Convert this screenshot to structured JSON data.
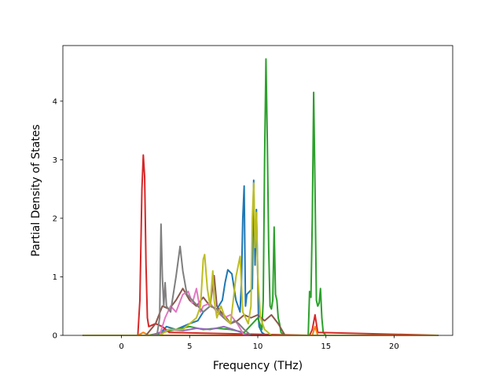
{
  "chart_data": {
    "type": "line",
    "title": "",
    "xlabel": "Frequency (THz)",
    "ylabel": "Partial Density of States",
    "xlim": [
      -4.3,
      24.3
    ],
    "ylim": [
      0,
      4.95
    ],
    "xticks": [
      0,
      5,
      10,
      15,
      20
    ],
    "yticks": [
      0,
      1,
      2,
      3,
      4
    ],
    "grid": false,
    "legend": "none",
    "series": [
      {
        "color": "#1f77b4",
        "x": [
          -2.8,
          2.6,
          2.9,
          3.3,
          4.0,
          5.0,
          5.6,
          6.0,
          6.5,
          7.0,
          7.4,
          7.6,
          7.8,
          8.1,
          8.4,
          8.7,
          8.8,
          8.9,
          9.0,
          9.05,
          9.1,
          9.2,
          9.4,
          9.6,
          9.7,
          9.8,
          9.9,
          10.0,
          10.05,
          10.1,
          10.3,
          10.6,
          11.0,
          23.2
        ],
        "y": [
          0,
          0,
          0.05,
          0.15,
          0.1,
          0.2,
          0.25,
          0.4,
          0.5,
          0.45,
          0.6,
          0.9,
          1.12,
          1.05,
          0.6,
          0.4,
          0.9,
          2.0,
          2.55,
          1.5,
          0.5,
          0.7,
          0.75,
          0.8,
          2.65,
          1.2,
          2.15,
          1.0,
          0.3,
          0.15,
          0.05,
          0,
          0,
          0
        ]
      },
      {
        "color": "#2ca02c",
        "x": [
          -2.8,
          2.0,
          3.0,
          4.0,
          5.0,
          6.0,
          7.0,
          8.0,
          9.0,
          10.0,
          10.3,
          10.4,
          10.5,
          10.6,
          10.7,
          10.8,
          10.9,
          11.0,
          11.1,
          11.2,
          11.3,
          11.4,
          11.5,
          11.6,
          11.7,
          12.0,
          13.7,
          13.8,
          13.9,
          14.0,
          14.1,
          14.2,
          14.3,
          14.4,
          14.5,
          14.6,
          14.7,
          14.8,
          15.0,
          23.2
        ],
        "y": [
          0,
          0,
          0.05,
          0.1,
          0.15,
          0.1,
          0.12,
          0.1,
          0.05,
          0.3,
          0.1,
          0.6,
          3.0,
          4.72,
          3.3,
          1.5,
          0.5,
          0.45,
          0.6,
          1.85,
          0.7,
          0.6,
          0.3,
          0.2,
          0.05,
          0,
          0,
          0.75,
          0.65,
          2.0,
          4.15,
          2.5,
          0.6,
          0.5,
          0.55,
          0.8,
          0.3,
          0.05,
          0,
          0
        ]
      },
      {
        "color": "#d62728",
        "x": [
          -2.8,
          1.2,
          1.35,
          1.5,
          1.6,
          1.7,
          1.8,
          1.9,
          2.0,
          2.5,
          3.0,
          3.5,
          13.8,
          14.0,
          14.2,
          14.4,
          23.2
        ],
        "y": [
          0,
          0,
          0.6,
          2.5,
          3.08,
          2.7,
          1.2,
          0.3,
          0.15,
          0.2,
          0.15,
          0.05,
          0,
          0.1,
          0.35,
          0.05,
          0
        ]
      },
      {
        "color": "#ff7f0e",
        "x": [
          -2.8,
          1.2,
          1.6,
          2.0,
          14.0,
          14.2,
          14.4,
          23.2
        ],
        "y": [
          0,
          0,
          0.05,
          0,
          0,
          0.15,
          0,
          0
        ]
      },
      {
        "color": "#9467bd",
        "x": [
          -2.8,
          2.2,
          2.8,
          3.5,
          4.5,
          5.5,
          6.5,
          7.5,
          8.2,
          8.8,
          9.2,
          23.2
        ],
        "y": [
          0,
          0,
          0.05,
          0.1,
          0.08,
          0.12,
          0.1,
          0.15,
          0.1,
          0.05,
          0,
          0
        ]
      },
      {
        "color": "#8c564b",
        "x": [
          -2.8,
          1.8,
          2.5,
          3.0,
          3.5,
          4.0,
          4.5,
          5.0,
          5.5,
          6.0,
          6.5,
          6.8,
          7.0,
          7.3,
          7.7,
          8.0,
          8.5,
          9.0,
          9.5,
          10.0,
          10.5,
          11.0,
          11.5,
          12.0,
          23.2
        ],
        "y": [
          0,
          0,
          0.2,
          0.5,
          0.45,
          0.6,
          0.8,
          0.6,
          0.5,
          0.65,
          0.5,
          1.02,
          0.5,
          0.4,
          0.3,
          0.2,
          0.25,
          0.35,
          0.3,
          0.35,
          0.25,
          0.35,
          0.2,
          0,
          0
        ]
      },
      {
        "color": "#e377c2",
        "x": [
          -2.8,
          2.8,
          3.2,
          3.6,
          4.0,
          4.5,
          4.9,
          5.2,
          5.5,
          5.8,
          6.0,
          6.5,
          7.0,
          7.5,
          8.0,
          8.5,
          9.0,
          23.2
        ],
        "y": [
          0,
          0,
          0.3,
          0.5,
          0.4,
          0.7,
          0.75,
          0.55,
          0.8,
          0.4,
          0.5,
          0.55,
          0.4,
          0.3,
          0.35,
          0.2,
          0,
          0
        ]
      },
      {
        "color": "#7f7f7f",
        "x": [
          -2.8,
          2.6,
          2.8,
          2.9,
          3.0,
          3.1,
          3.2,
          3.3,
          3.6,
          4.0,
          4.3,
          4.5,
          4.8,
          5.2,
          5.6,
          6.0,
          6.5,
          7.0,
          7.5,
          8.0,
          8.3,
          8.6,
          9.0,
          9.5,
          23.2
        ],
        "y": [
          0,
          0,
          0.3,
          1.9,
          1.0,
          0.5,
          0.9,
          0.5,
          0.4,
          1.0,
          1.52,
          1.1,
          0.7,
          0.6,
          0.5,
          0.4,
          0.5,
          0.45,
          0.3,
          0.2,
          0.25,
          0.2,
          0.1,
          0,
          0
        ]
      },
      {
        "color": "#bcbd22",
        "x": [
          -2.8,
          2.8,
          3.5,
          4.5,
          5.0,
          5.5,
          5.8,
          6.0,
          6.1,
          6.3,
          6.5,
          6.7,
          6.8,
          7.0,
          7.3,
          7.6,
          8.0,
          8.4,
          8.7,
          8.9,
          9.1,
          9.3,
          9.5,
          9.6,
          9.7,
          9.8,
          9.9,
          10.0,
          10.2,
          10.5,
          11.0,
          23.2
        ],
        "y": [
          0,
          0,
          0.1,
          0.1,
          0.2,
          0.3,
          0.5,
          1.3,
          1.38,
          0.8,
          0.5,
          1.1,
          0.6,
          0.3,
          0.5,
          0.3,
          0.2,
          1.0,
          1.35,
          0.4,
          0.3,
          0.2,
          0.5,
          2.0,
          2.6,
          1.5,
          2.1,
          1.0,
          0.3,
          0.1,
          0,
          0
        ]
      }
    ]
  }
}
